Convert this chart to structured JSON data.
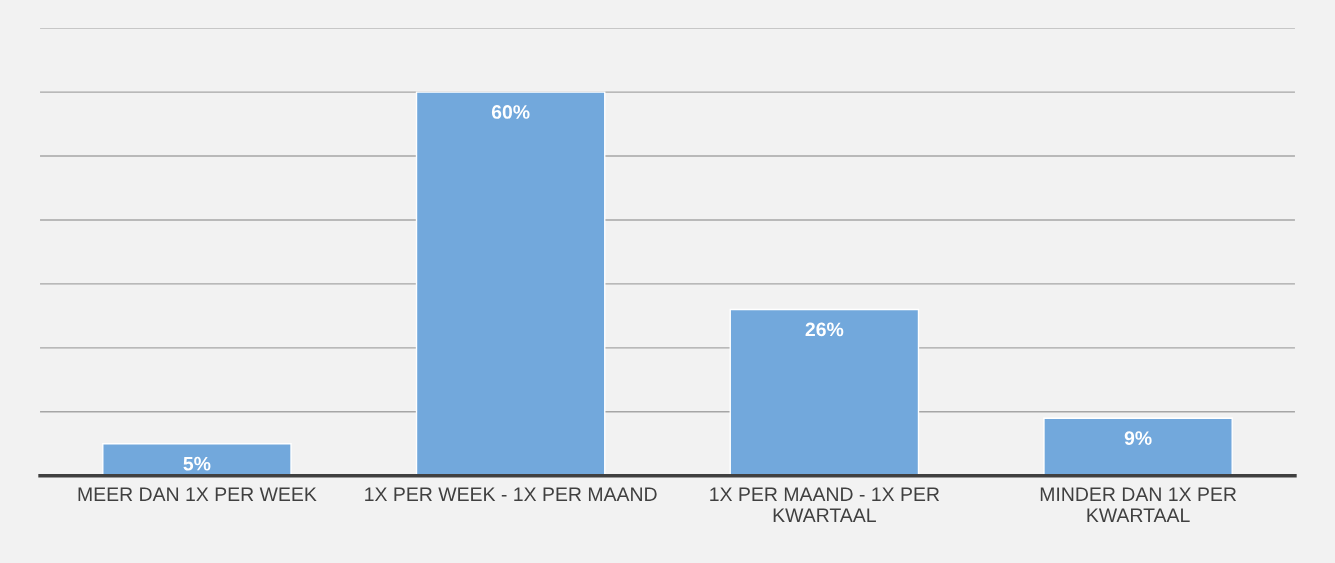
{
  "chart_data": {
    "type": "bar",
    "categories": [
      "MEER DAN 1X PER WEEK",
      "1X PER WEEK - 1X PER MAAND",
      "1X PER MAAND - 1X PER\nKWARTAAL",
      "MINDER DAN 1X PER\nKWARTAAL"
    ],
    "values": [
      5,
      60,
      26,
      9
    ],
    "value_labels": [
      "5%",
      "60%",
      "26%",
      "9%"
    ],
    "color": "#72a8dc",
    "ylim": [
      0,
      70
    ],
    "yticks": [
      {
        "value": 0,
        "label": null
      },
      {
        "value": 10,
        "label": null
      },
      {
        "value": 20,
        "label": null
      },
      {
        "value": 30,
        "label": null
      },
      {
        "value": 40,
        "label": null
      },
      {
        "value": 50,
        "label": null
      },
      {
        "value": 60,
        "label": null
      },
      {
        "value": 70,
        "label": null
      }
    ],
    "grid": "y",
    "tick_labels": "x"
  }
}
